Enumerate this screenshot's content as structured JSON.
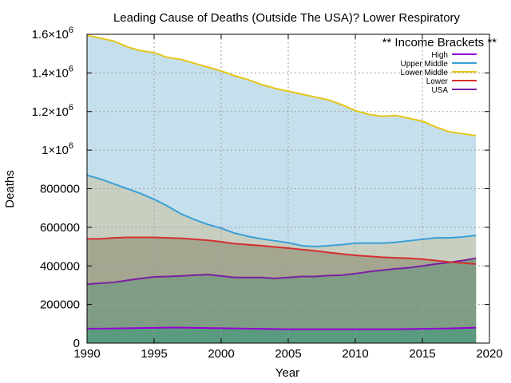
{
  "chart_data": {
    "type": "area",
    "title": "Leading Cause of  Deaths (Outside The USA)? Lower Respiratory",
    "xlabel": "Year",
    "ylabel": "Deaths",
    "xlim": [
      1990,
      2020
    ],
    "ylim": [
      0,
      1600000
    ],
    "x_ticks": [
      1990,
      1995,
      2000,
      2005,
      2010,
      2015,
      2020
    ],
    "y_ticks": [
      {
        "value": 0,
        "label": "0"
      },
      {
        "value": 200000,
        "label": "200000"
      },
      {
        "value": 400000,
        "label": "400000"
      },
      {
        "value": 600000,
        "label": "600000"
      },
      {
        "value": 800000,
        "label": "800000"
      },
      {
        "value": 1000000,
        "label": "1×10"
      },
      {
        "value": 1200000,
        "label": "1.2×10"
      },
      {
        "value": 1400000,
        "label": "1.4×10"
      },
      {
        "value": 1600000,
        "label": "1.6×10"
      }
    ],
    "y_tick_exponent": "6",
    "grid": true,
    "legend_placement": "top-right",
    "legend_title": "** Income Brackets **",
    "x": [
      1990,
      1991,
      1992,
      1993,
      1994,
      1995,
      1996,
      1997,
      1998,
      1999,
      2000,
      2001,
      2002,
      2003,
      2004,
      2005,
      2006,
      2007,
      2008,
      2009,
      2010,
      2011,
      2012,
      2013,
      2014,
      2015,
      2016,
      2017,
      2018,
      2019
    ],
    "series": [
      {
        "name": "High",
        "line_color": "#9400d3",
        "fill_color": "#5a9a7e",
        "values": [
          75000,
          75000,
          76000,
          77000,
          78000,
          79000,
          80000,
          80000,
          79000,
          78000,
          77000,
          76000,
          75000,
          74000,
          73000,
          72000,
          72000,
          72000,
          72000,
          72000,
          72000,
          72000,
          72000,
          72000,
          73000,
          74000,
          75000,
          76000,
          78000,
          80000
        ]
      },
      {
        "name": "USA",
        "line_color": "#7b1fa2",
        "fill_color": "#7f9c84",
        "values": [
          305000,
          310000,
          315000,
          325000,
          335000,
          343000,
          345000,
          348000,
          352000,
          355000,
          348000,
          340000,
          340000,
          340000,
          335000,
          340000,
          345000,
          345000,
          350000,
          352000,
          360000,
          370000,
          378000,
          385000,
          390000,
          400000,
          410000,
          418000,
          428000,
          440000
        ]
      },
      {
        "name": "Lower",
        "line_color": "#d32f2f",
        "fill_color": "#a4a690",
        "values": [
          540000,
          540000,
          545000,
          548000,
          548000,
          548000,
          545000,
          543000,
          538000,
          533000,
          525000,
          515000,
          510000,
          505000,
          498000,
          492000,
          485000,
          478000,
          470000,
          462000,
          455000,
          450000,
          445000,
          442000,
          440000,
          435000,
          428000,
          420000,
          415000,
          410000
        ]
      },
      {
        "name": "Upper Middle",
        "line_color": "#3aa0d8",
        "fill_color": "#c8cfc0",
        "values": [
          870000,
          850000,
          825000,
          800000,
          775000,
          745000,
          710000,
          670000,
          640000,
          615000,
          595000,
          570000,
          553000,
          540000,
          530000,
          520000,
          505000,
          500000,
          505000,
          510000,
          518000,
          518000,
          518000,
          522000,
          530000,
          538000,
          545000,
          545000,
          550000,
          558000
        ]
      },
      {
        "name": "Lower Middle",
        "line_color": "#e6c619",
        "fill_color": "#c6dfec",
        "values": [
          1595000,
          1580000,
          1565000,
          1535000,
          1515000,
          1505000,
          1480000,
          1470000,
          1450000,
          1430000,
          1410000,
          1385000,
          1365000,
          1340000,
          1320000,
          1305000,
          1290000,
          1275000,
          1260000,
          1235000,
          1205000,
          1185000,
          1175000,
          1180000,
          1165000,
          1150000,
          1120000,
          1095000,
          1085000,
          1075000
        ]
      }
    ],
    "legend_order": [
      "High",
      "Upper Middle",
      "Lower Middle",
      "Lower",
      "USA"
    ]
  }
}
